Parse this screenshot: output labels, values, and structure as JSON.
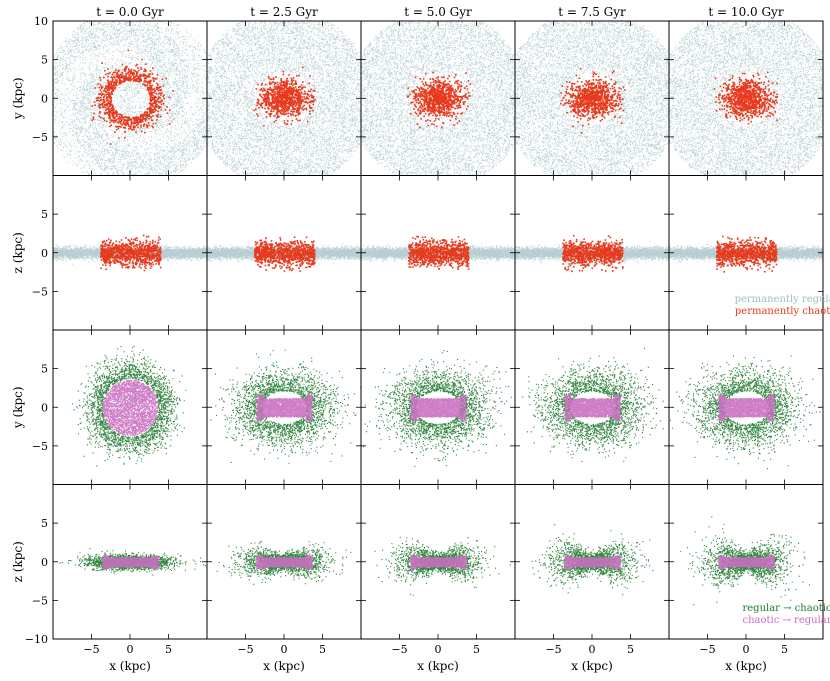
{
  "chart_data": {
    "type": "scatter",
    "title": "",
    "columns": [
      {
        "label": "t = 0.0 Gyr",
        "t_gyr": 0.0
      },
      {
        "label": "t = 2.5 Gyr",
        "t_gyr": 2.5
      },
      {
        "label": "t = 5.0 Gyr",
        "t_gyr": 5.0
      },
      {
        "label": "t = 7.5 Gyr",
        "t_gyr": 7.5
      },
      {
        "label": "t = 10.0 Gyr",
        "t_gyr": 10.0
      }
    ],
    "rows": [
      {
        "projection": "xy",
        "ylabel": "y (kpc)",
        "series": [
          "permanently regular",
          "permanently chaotic"
        ]
      },
      {
        "projection": "xz",
        "ylabel": "z (kpc)",
        "series": [
          "permanently regular",
          "permanently chaotic"
        ]
      },
      {
        "projection": "xy",
        "ylabel": "y (kpc)",
        "series": [
          "regular → chaotic",
          "chaotic → regular"
        ]
      },
      {
        "projection": "xz",
        "ylabel": "z (kpc)",
        "series": [
          "regular → chaotic",
          "chaotic → regular"
        ]
      }
    ],
    "xlabel": "x (kpc)",
    "xlim": [
      -10,
      10
    ],
    "ylim": [
      -10,
      10
    ],
    "xticks": [
      -5,
      0,
      5
    ],
    "yticks_top": [
      10,
      5,
      0,
      -5
    ],
    "yticks_inner": [
      5,
      0,
      -5
    ],
    "yticks_bottom": [
      5,
      0,
      -5,
      -10
    ],
    "tick_labels": {
      "x": [
        "−5",
        "0",
        "5"
      ],
      "y_top": [
        "10",
        "5",
        "0",
        "−5"
      ],
      "y_inner": [
        "5",
        "0",
        "−5"
      ],
      "y_bottom": [
        "5",
        "0",
        "−5",
        "−10"
      ]
    },
    "series": [
      {
        "name": "permanently regular",
        "color": "#9fbfc4",
        "distribution": "extended disc, radius ~10 kpc, thickness ~1 kpc"
      },
      {
        "name": "permanently chaotic",
        "color": "#e8391c",
        "distribution": "ring/bar, radius ~4 kpc, thickness ~4 kpc"
      },
      {
        "name": "regular → chaotic",
        "color": "#1f7a2f",
        "distribution": "envelope around bar, radius ~6 kpc"
      },
      {
        "name": "chaotic → regular",
        "color": "#c96fc0",
        "distribution": "bar core, half-length ~4 kpc"
      }
    ],
    "legends": [
      {
        "row": 1,
        "position": "bottom-right",
        "entries": [
          "permanently regular",
          "permanently chaotic"
        ]
      },
      {
        "row": 3,
        "position": "bottom-right",
        "entries": [
          "regular → chaotic",
          "chaotic → regular"
        ]
      }
    ]
  }
}
